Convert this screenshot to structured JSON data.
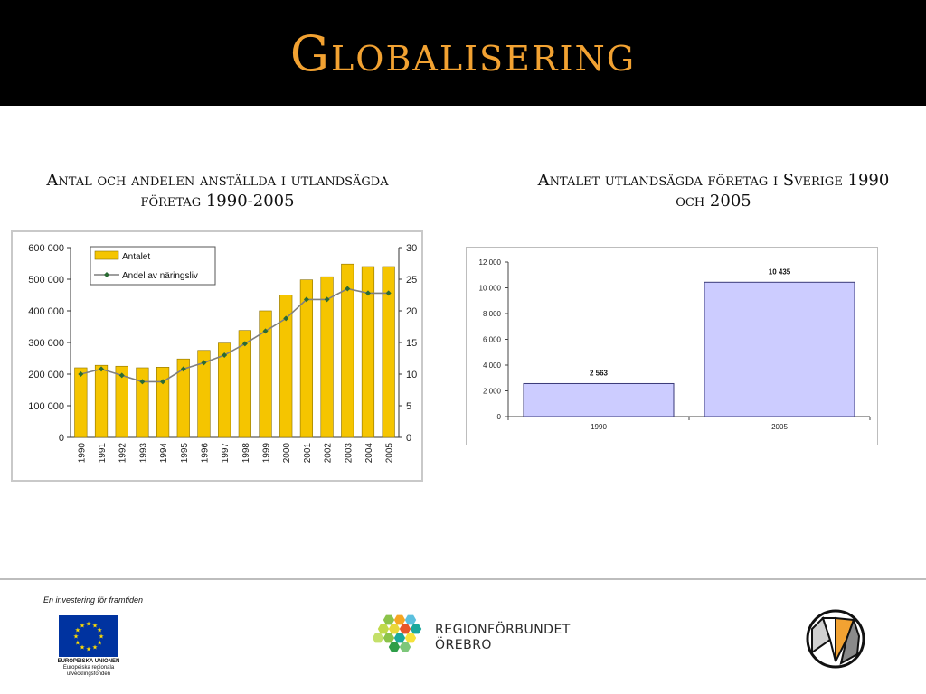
{
  "slide": {
    "title": "Globalisering"
  },
  "left_chart": {
    "caption_line1": "Antal och andelen anställda i utlandsägda",
    "caption_line2": "företag 1990-2005"
  },
  "right_chart": {
    "caption_line1": "Antalet utlandsägda företag i Sverige 1990",
    "caption_line2": "och 2005"
  },
  "chart_data": [
    {
      "type": "bar",
      "title": "",
      "categories": [
        "1990",
        "1991",
        "1992",
        "1993",
        "1994",
        "1995",
        "1996",
        "1997",
        "1998",
        "1999",
        "2000",
        "2001",
        "2002",
        "2003",
        "2004",
        "2005"
      ],
      "series": [
        {
          "name": "Antalet",
          "type": "bar",
          "axis": "left",
          "values": [
            220000,
            228000,
            225000,
            220000,
            222000,
            248000,
            275000,
            298000,
            338000,
            400000,
            450000,
            498000,
            508000,
            548000,
            540000,
            540000
          ]
        },
        {
          "name": "Andel av näringsliv",
          "type": "line",
          "axis": "right",
          "values": [
            10,
            10.8,
            9.8,
            8.8,
            8.8,
            10.8,
            11.8,
            13,
            14.8,
            16.8,
            18.8,
            21.8,
            21.8,
            23.5,
            22.8,
            22.8
          ]
        }
      ],
      "ylim": [
        0,
        600000
      ],
      "y2lim": [
        0,
        30
      ],
      "yticks": [
        "0",
        "100 000",
        "200 000",
        "300 000",
        "400 000",
        "500 000",
        "600 000"
      ],
      "y2ticks": [
        "0",
        "5",
        "10",
        "15",
        "20",
        "25",
        "30"
      ],
      "legend_position": "top-left",
      "colors": {
        "bar": "#f5c500",
        "bar_edge": "#8a7000",
        "line": "#7f7f7f",
        "marker": "#2b6b34"
      }
    },
    {
      "type": "bar",
      "title": "",
      "categories": [
        "1990",
        "2005"
      ],
      "values": [
        2563,
        10435
      ],
      "data_labels": [
        "2 563",
        "10 435"
      ],
      "ylim": [
        0,
        12000
      ],
      "yticks": [
        "0",
        "2 000",
        "4 000",
        "6 000",
        "8 000",
        "10 000",
        "12 000"
      ],
      "grid": false,
      "colors": {
        "bar": "#ccccff",
        "bar_edge": "#3a3a78"
      }
    }
  ],
  "footer": {
    "eu_tagline": "En investering för framtiden",
    "eu_name": "EUROPEISKA UNIONEN",
    "eu_fund_line1": "Europeiska regionala",
    "eu_fund_line2": "utvecklingsfonden",
    "region_line1": "REGIONFÖRBUNDET",
    "region_line2": "ÖREBRO"
  }
}
